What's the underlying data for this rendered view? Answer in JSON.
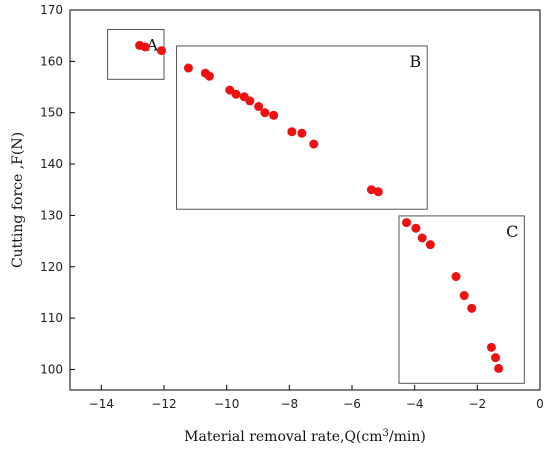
{
  "chart_data": {
    "type": "scatter",
    "xlabel_main": "Material removal rate,Q(cm",
    "xlabel_sup": "3",
    "xlabel_tail": "/min)",
    "ylabel": "Cutting force ,F(N)",
    "xlim": [
      -15,
      0
    ],
    "ylim": [
      96,
      170
    ],
    "xticks": [
      -14,
      -12,
      -10,
      -8,
      -6,
      -4,
      -2,
      0
    ],
    "yticks": [
      100,
      110,
      120,
      130,
      140,
      150,
      160,
      170
    ],
    "marker_color": "#ee1111",
    "grid": false,
    "series": [
      {
        "x": [
          -12.78,
          -12.6,
          -12.08,
          -11.22,
          -10.68,
          -10.55,
          -9.9,
          -9.7,
          -9.44,
          -9.26,
          -8.98,
          -8.78,
          -8.5,
          -7.92,
          -7.6,
          -7.22,
          -5.38,
          -5.16,
          -4.26,
          -3.96,
          -3.76,
          -3.5,
          -2.68,
          -2.42,
          -2.18,
          -1.55,
          -1.42,
          -1.32
        ],
        "y": [
          163.1,
          162.8,
          162.1,
          158.7,
          157.7,
          157.1,
          154.4,
          153.6,
          153.1,
          152.3,
          151.2,
          150.0,
          149.5,
          146.3,
          146.0,
          143.9,
          135.0,
          134.6,
          128.6,
          127.5,
          125.6,
          124.3,
          118.1,
          114.4,
          111.9,
          104.3,
          102.3,
          100.2
        ]
      }
    ],
    "regions": [
      {
        "label": "A",
        "x_range": [
          -13.8,
          -12.0
        ],
        "y_range": [
          156.5,
          166.2
        ]
      },
      {
        "label": "B",
        "x_range": [
          -11.6,
          -3.6
        ],
        "y_range": [
          131.2,
          163.0
        ]
      },
      {
        "label": "C",
        "x_range": [
          -4.5,
          -0.5
        ],
        "y_range": [
          97.3,
          129.9
        ]
      }
    ]
  }
}
